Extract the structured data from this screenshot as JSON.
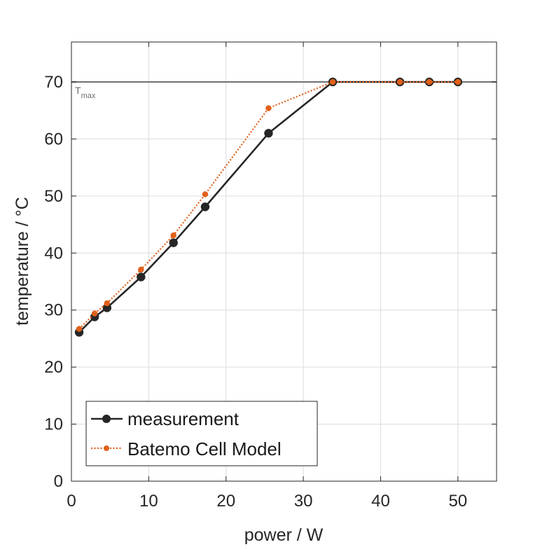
{
  "chart_data": {
    "type": "line",
    "title": "",
    "xlabel": "power / W",
    "ylabel": "temperature / °C",
    "xlim": [
      0,
      55
    ],
    "ylim": [
      0,
      77
    ],
    "xticks": [
      0,
      10,
      20,
      30,
      40,
      50
    ],
    "yticks": [
      0,
      10,
      20,
      30,
      40,
      50,
      60,
      70
    ],
    "xtick_labels": [
      "0",
      "10",
      "20",
      "30",
      "40",
      "50"
    ],
    "ytick_labels": [
      "0",
      "10",
      "20",
      "30",
      "40",
      "50",
      "60",
      "70"
    ],
    "grid": true,
    "legend_position": "bottom-left",
    "series": [
      {
        "name": "measurement",
        "style": "solid",
        "marker": "circle",
        "color": "#262626",
        "x": [
          1,
          3,
          4.6,
          9,
          13.2,
          17.3,
          25.5,
          33.8,
          42.5,
          46.3,
          50
        ],
        "y": [
          26.1,
          28.8,
          30.4,
          35.8,
          41.8,
          48.1,
          61,
          70,
          70,
          70,
          70
        ]
      },
      {
        "name": "Batemo Cell Model",
        "style": "dotted",
        "marker": "circle-small",
        "color": "#e0601a",
        "x": [
          1,
          3,
          4.6,
          9,
          13.2,
          17.3,
          25.5,
          33.8,
          42.5,
          46.3,
          50
        ],
        "y": [
          26.7,
          29.4,
          31.2,
          37.1,
          43.1,
          50.3,
          65.4,
          70,
          70,
          70,
          70
        ]
      }
    ],
    "reference_line": {
      "y": 70,
      "label_main": "T",
      "label_sub": "max",
      "color": "#707070"
    }
  }
}
